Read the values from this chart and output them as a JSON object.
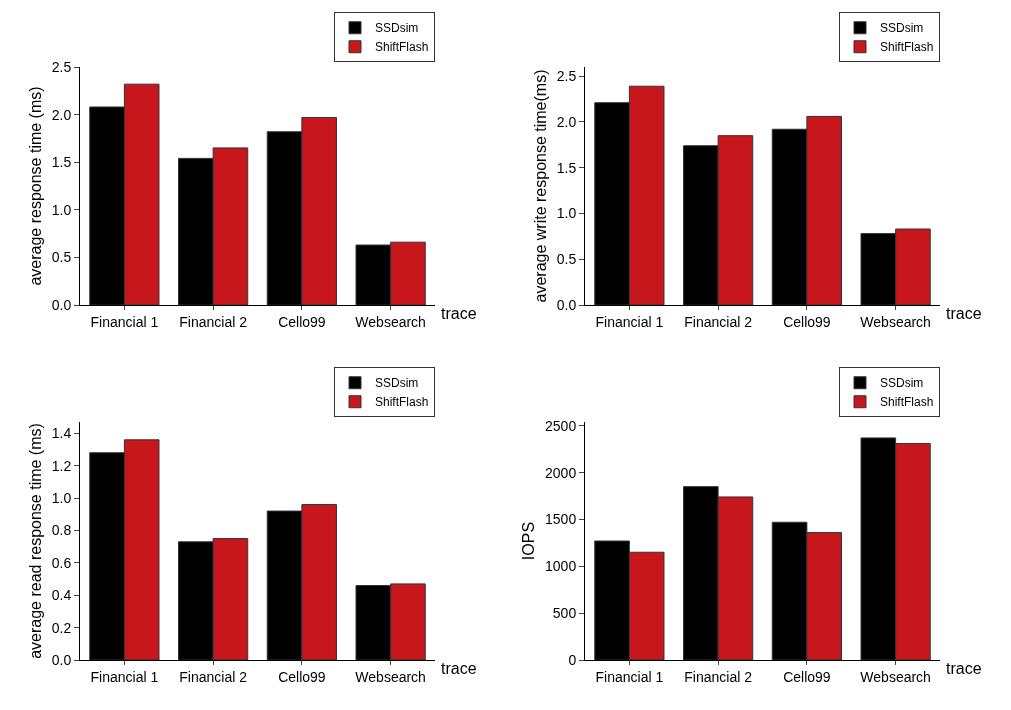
{
  "chart_data": [
    {
      "type": "bar",
      "xlabel": "trace",
      "ylabel": "average response time (ms)",
      "categories": [
        "Financial 1",
        "Financial 2",
        "Cello99",
        "Websearch"
      ],
      "series": [
        {
          "name": "SSDsim",
          "color": "#000000",
          "values": [
            2.08,
            1.54,
            1.82,
            0.63
          ]
        },
        {
          "name": "ShiftFlash",
          "color": "#c8161d",
          "values": [
            2.32,
            1.65,
            1.97,
            0.66
          ]
        }
      ],
      "ylim": [
        0,
        2.5
      ],
      "yticks": [
        {
          "value": 0,
          "label": "0.0"
        },
        {
          "value": 0.5,
          "label": "0.5"
        },
        {
          "value": 1,
          "label": "1.0"
        },
        {
          "value": 1.5,
          "label": "1.5"
        },
        {
          "value": 2,
          "label": "2.0"
        },
        {
          "value": 2.5,
          "label": "2.5"
        }
      ],
      "grid": false,
      "legend": "top right"
    },
    {
      "type": "bar",
      "xlabel": "trace",
      "ylabel": "average write response time(ms)",
      "categories": [
        "Financial 1",
        "Financial 2",
        "Cello99",
        "Websearch"
      ],
      "series": [
        {
          "name": "SSDsim",
          "color": "#000000",
          "values": [
            2.21,
            1.74,
            1.92,
            0.78
          ]
        },
        {
          "name": "ShiftFlash",
          "color": "#c8161d",
          "values": [
            2.39,
            1.85,
            2.06,
            0.83
          ]
        }
      ],
      "ylim": [
        0,
        2.6
      ],
      "yticks": [
        {
          "value": 0,
          "label": "0.0"
        },
        {
          "value": 0.5,
          "label": "0.5"
        },
        {
          "value": 1,
          "label": "1.0"
        },
        {
          "value": 1.5,
          "label": "1.5"
        },
        {
          "value": 2,
          "label": "2.0"
        },
        {
          "value": 2.5,
          "label": "2.5"
        }
      ],
      "grid": false,
      "legend": "top right"
    },
    {
      "type": "bar",
      "xlabel": "trace",
      "ylabel": "average read response time (ms)",
      "categories": [
        "Financial 1",
        "Financial 2",
        "Cello99",
        "Websearch"
      ],
      "series": [
        {
          "name": "SSDsim",
          "color": "#000000",
          "values": [
            1.28,
            0.73,
            0.92,
            0.46
          ]
        },
        {
          "name": "ShiftFlash",
          "color": "#c8161d",
          "values": [
            1.36,
            0.75,
            0.96,
            0.47
          ]
        }
      ],
      "ylim": [
        0,
        1.47
      ],
      "yticks": [
        {
          "value": 0,
          "label": "0.0"
        },
        {
          "value": 0.2,
          "label": "0.2"
        },
        {
          "value": 0.4,
          "label": "0.4"
        },
        {
          "value": 0.6,
          "label": "0.6"
        },
        {
          "value": 0.8,
          "label": "0.8"
        },
        {
          "value": 1,
          "label": "1.0"
        },
        {
          "value": 1.2,
          "label": "1.2"
        },
        {
          "value": 1.4,
          "label": "1.4"
        }
      ],
      "grid": false,
      "legend": "top right"
    },
    {
      "type": "bar",
      "xlabel": "trace",
      "ylabel": "IOPS",
      "categories": [
        "Financial 1",
        "Financial 2",
        "Cello99",
        "Websearch"
      ],
      "series": [
        {
          "name": "SSDsim",
          "color": "#000000",
          "values": [
            1270,
            1850,
            1470,
            2370
          ]
        },
        {
          "name": "ShiftFlash",
          "color": "#c8161d",
          "values": [
            1150,
            1740,
            1360,
            2310
          ]
        }
      ],
      "ylim": [
        0,
        2540
      ],
      "yticks": [
        0,
        500,
        1000,
        1500,
        2000,
        2500
      ],
      "grid": false,
      "legend": "top right"
    }
  ]
}
